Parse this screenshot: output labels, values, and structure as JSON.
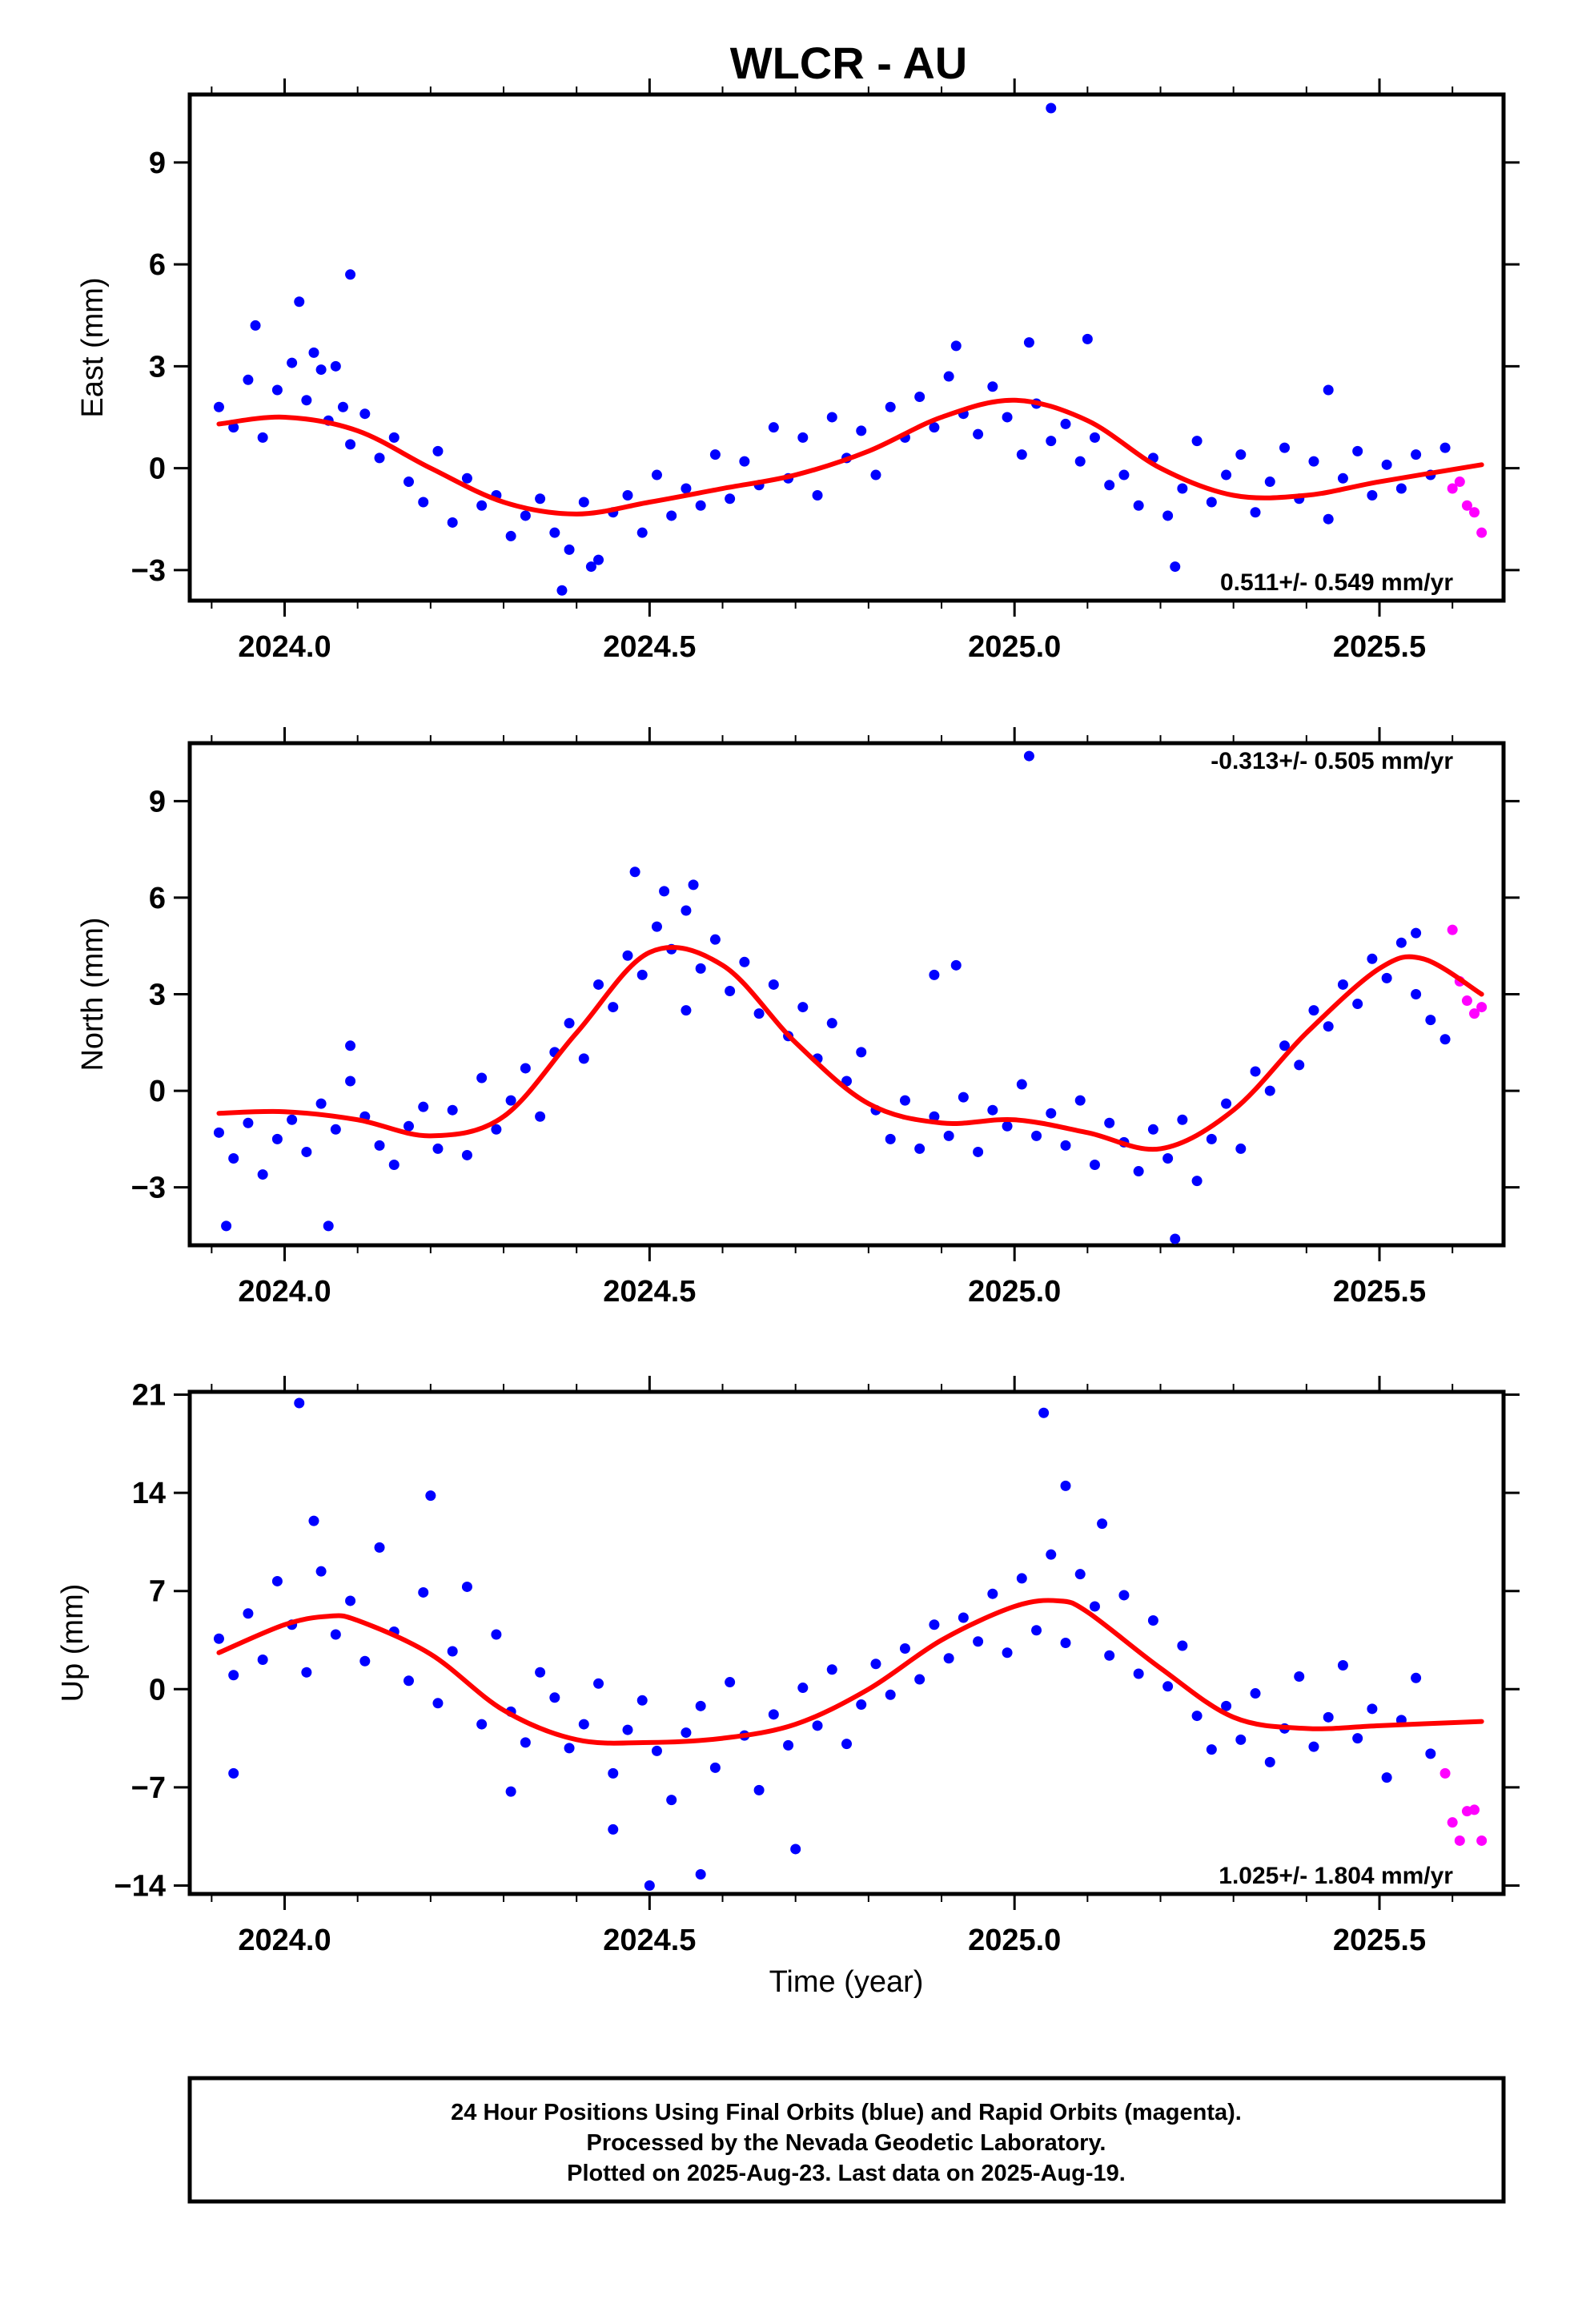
{
  "chart_data": {
    "type": "scatter",
    "title": "WLCR - AU",
    "xlabel": "Time (year)",
    "xlim": [
      2023.87,
      2025.67
    ],
    "xticks": [
      2024.0,
      2024.5,
      2025.0,
      2025.5
    ],
    "xtick_labels": [
      "2024.0",
      "2024.5",
      "2025.0",
      "2025.5"
    ],
    "colors": {
      "final": "#0000ff",
      "rapid": "#ff00ff",
      "model": "#ff0000"
    },
    "panels": [
      {
        "ylabel": "East (mm)",
        "ylim": [
          -3.9,
          11.0
        ],
        "yticks": [
          -3,
          0,
          3,
          6,
          9
        ],
        "ytick_labels": [
          "−3",
          "0",
          "3",
          "6",
          "9"
        ],
        "rate_text": "0.511+/- 0.549 mm/yr",
        "rate_position": "bottom-right",
        "model": {
          "t": [
            2023.91,
            2024.0,
            2024.1,
            2024.2,
            2024.3,
            2024.4,
            2024.5,
            2024.6,
            2024.7,
            2024.8,
            2024.9,
            2025.0,
            2025.1,
            2025.2,
            2025.3,
            2025.4,
            2025.5,
            2025.64
          ],
          "y": [
            1.3,
            1.5,
            1.1,
            0.0,
            -1.0,
            -1.35,
            -1.0,
            -0.6,
            -0.2,
            0.5,
            1.5,
            2.0,
            1.4,
            0.0,
            -0.8,
            -0.8,
            -0.4,
            0.1
          ]
        },
        "final": {
          "x": [
            2023.91,
            2023.93,
            2023.95,
            2023.97,
            2023.99,
            2024.01,
            2024.03,
            2024.05,
            2024.06,
            2024.08,
            2024.09,
            2024.11,
            2024.13,
            2024.15,
            2024.17,
            2024.19,
            2024.21,
            2024.23,
            2024.25,
            2024.27,
            2024.29,
            2024.31,
            2024.33,
            2024.35,
            2024.37,
            2024.39,
            2024.41,
            2024.43,
            2024.45,
            2024.47,
            2024.49,
            2024.51,
            2024.53,
            2024.55,
            2024.57,
            2024.59,
            2024.61,
            2024.63,
            2024.65,
            2024.67,
            2024.69,
            2024.71,
            2024.73,
            2024.75,
            2024.77,
            2024.79,
            2024.81,
            2024.83,
            2024.85,
            2024.87,
            2024.89,
            2024.91,
            2024.93,
            2024.95,
            2024.97,
            2024.99,
            2025.01,
            2025.03,
            2025.05,
            2025.07,
            2025.09,
            2025.11,
            2025.13,
            2025.15,
            2025.17,
            2025.19,
            2025.21,
            2025.23,
            2025.25,
            2025.27,
            2025.29,
            2025.31,
            2025.33,
            2025.35,
            2025.37,
            2025.39,
            2025.41,
            2025.43,
            2025.45,
            2025.47,
            2025.49,
            2025.51,
            2025.53,
            2025.55,
            2025.57,
            2025.59,
            2023.96,
            2024.02,
            2024.04,
            2024.07,
            2024.09,
            2024.38,
            2024.42,
            2024.92,
            2025.02,
            2025.05,
            2025.1,
            2025.22,
            2025.43
          ],
          "y": [
            1.8,
            1.2,
            2.6,
            0.9,
            2.3,
            3.1,
            2.0,
            2.9,
            1.4,
            1.8,
            0.7,
            1.6,
            0.3,
            0.9,
            -0.4,
            -1.0,
            0.5,
            -1.6,
            -0.3,
            -1.1,
            -0.8,
            -2.0,
            -1.4,
            -0.9,
            -1.9,
            -2.4,
            -1.0,
            -2.7,
            -1.3,
            -0.8,
            -1.9,
            -0.2,
            -1.4,
            -0.6,
            -1.1,
            0.4,
            -0.9,
            0.2,
            -0.5,
            1.2,
            -0.3,
            0.9,
            -0.8,
            1.5,
            0.3,
            1.1,
            -0.2,
            1.8,
            0.9,
            2.1,
            1.2,
            2.7,
            1.6,
            1.0,
            2.4,
            1.5,
            0.4,
            1.9,
            0.8,
            1.3,
            0.2,
            0.9,
            -0.5,
            -0.2,
            -1.1,
            0.3,
            -1.4,
            -0.6,
            0.8,
            -1.0,
            -0.2,
            0.4,
            -1.3,
            -0.4,
            0.6,
            -0.9,
            0.2,
            -1.5,
            -0.3,
            0.5,
            -0.8,
            0.1,
            -0.6,
            0.4,
            -0.2,
            0.6,
            4.2,
            4.9,
            3.4,
            3.0,
            5.7,
            -3.6,
            -2.9,
            3.6,
            3.7,
            10.6,
            3.8,
            -2.9,
            2.3
          ]
        },
        "rapid": {
          "x": [
            2025.6,
            2025.61,
            2025.62,
            2025.63,
            2025.64
          ],
          "y": [
            -0.6,
            -0.4,
            -1.1,
            -1.3,
            -1.9
          ]
        }
      },
      {
        "ylabel": "North (mm)",
        "ylim": [
          -4.8,
          10.8
        ],
        "yticks": [
          -3,
          0,
          3,
          6,
          9
        ],
        "ytick_labels": [
          "−3",
          "0",
          "3",
          "6",
          "9"
        ],
        "rate_text": "-0.313+/- 0.505 mm/yr",
        "rate_position": "top-right",
        "model": {
          "t": [
            2023.91,
            2024.0,
            2024.1,
            2024.2,
            2024.3,
            2024.4,
            2024.5,
            2024.6,
            2024.7,
            2024.8,
            2024.9,
            2025.0,
            2025.1,
            2025.2,
            2025.3,
            2025.4,
            2025.5,
            2025.56,
            2025.64
          ],
          "y": [
            -0.7,
            -0.65,
            -0.9,
            -1.4,
            -0.8,
            1.8,
            4.3,
            3.9,
            1.5,
            -0.4,
            -1.0,
            -0.9,
            -1.3,
            -1.8,
            -0.6,
            1.8,
            3.8,
            4.1,
            3.0
          ]
        },
        "final": {
          "x": [
            2023.91,
            2023.93,
            2023.95,
            2023.97,
            2023.99,
            2024.01,
            2024.03,
            2024.05,
            2024.07,
            2024.09,
            2024.11,
            2024.13,
            2024.15,
            2024.17,
            2024.19,
            2024.21,
            2024.23,
            2024.25,
            2024.27,
            2024.29,
            2024.31,
            2024.33,
            2024.35,
            2024.37,
            2024.39,
            2024.41,
            2024.43,
            2024.45,
            2024.47,
            2024.49,
            2024.51,
            2024.53,
            2024.55,
            2024.57,
            2024.59,
            2024.61,
            2024.63,
            2024.65,
            2024.67,
            2024.69,
            2024.71,
            2024.73,
            2024.75,
            2024.77,
            2024.79,
            2024.81,
            2024.83,
            2024.85,
            2024.87,
            2024.89,
            2024.91,
            2024.93,
            2024.95,
            2024.97,
            2024.99,
            2025.01,
            2025.03,
            2025.05,
            2025.07,
            2025.09,
            2025.11,
            2025.13,
            2025.15,
            2025.17,
            2025.19,
            2025.21,
            2025.23,
            2025.25,
            2025.27,
            2025.29,
            2025.31,
            2025.33,
            2025.35,
            2025.37,
            2025.39,
            2025.41,
            2025.43,
            2025.45,
            2025.47,
            2025.49,
            2025.51,
            2025.53,
            2025.55,
            2025.57,
            2025.59,
            2023.92,
            2024.06,
            2024.09,
            2024.48,
            2024.52,
            2024.56,
            2024.55,
            2024.89,
            2024.92,
            2025.02,
            2025.22,
            2025.55
          ],
          "y": [
            -1.3,
            -2.1,
            -1.0,
            -2.6,
            -1.5,
            -0.9,
            -1.9,
            -0.4,
            -1.2,
            0.3,
            -0.8,
            -1.7,
            -2.3,
            -1.1,
            -0.5,
            -1.8,
            -0.6,
            -2.0,
            0.4,
            -1.2,
            -0.3,
            0.7,
            -0.8,
            1.2,
            2.1,
            1.0,
            3.3,
            2.6,
            4.2,
            3.6,
            5.1,
            4.4,
            5.6,
            3.8,
            4.7,
            3.1,
            4.0,
            2.4,
            3.3,
            1.7,
            2.6,
            1.0,
            2.1,
            0.3,
            1.2,
            -0.6,
            -1.5,
            -0.3,
            -1.8,
            -0.8,
            -1.4,
            -0.2,
            -1.9,
            -0.6,
            -1.1,
            0.2,
            -1.4,
            -0.7,
            -1.7,
            -0.3,
            -2.3,
            -1.0,
            -1.6,
            -2.5,
            -1.2,
            -2.1,
            -0.9,
            -2.8,
            -1.5,
            -0.4,
            -1.8,
            0.6,
            0.0,
            1.4,
            0.8,
            2.5,
            2.0,
            3.3,
            2.7,
            4.1,
            3.5,
            4.6,
            3.0,
            2.2,
            1.6,
            -4.2,
            -4.2,
            1.4,
            6.8,
            6.2,
            6.4,
            2.5,
            3.6,
            3.9,
            10.4,
            -4.6,
            4.9
          ],
          "_note": ""
        },
        "rapid": {
          "x": [
            2025.6,
            2025.61,
            2025.62,
            2025.63,
            2025.64
          ],
          "y": [
            5.0,
            3.4,
            2.8,
            2.4,
            2.6
          ]
        }
      },
      {
        "ylabel": "Up (mm)",
        "ylim": [
          -14.6,
          21.2
        ],
        "yticks": [
          -14,
          -7,
          0,
          7,
          14,
          21
        ],
        "ytick_labels": [
          "−14",
          "−7",
          "0",
          "7",
          "14",
          "21"
        ],
        "rate_text": "1.025+/- 1.804 mm/yr",
        "rate_position": "bottom-right",
        "model": {
          "t": [
            2023.91,
            2024.0,
            2024.06,
            2024.1,
            2024.2,
            2024.3,
            2024.4,
            2024.5,
            2024.6,
            2024.7,
            2024.8,
            2024.9,
            2025.0,
            2025.06,
            2025.1,
            2025.2,
            2025.3,
            2025.4,
            2025.5,
            2025.64
          ],
          "y": [
            2.6,
            4.6,
            5.2,
            4.9,
            2.5,
            -1.5,
            -3.6,
            -3.8,
            -3.5,
            -2.5,
            0.0,
            3.5,
            5.9,
            6.3,
            5.5,
            1.5,
            -2.0,
            -2.8,
            -2.6,
            -2.3
          ]
        },
        "final": {
          "x": [
            2023.91,
            2023.93,
            2023.95,
            2023.97,
            2023.99,
            2024.01,
            2024.03,
            2024.05,
            2024.07,
            2024.09,
            2024.11,
            2024.13,
            2024.15,
            2024.17,
            2024.19,
            2024.21,
            2024.23,
            2024.25,
            2024.27,
            2024.29,
            2024.31,
            2024.33,
            2024.35,
            2024.37,
            2024.39,
            2024.41,
            2024.43,
            2024.45,
            2024.47,
            2024.49,
            2024.51,
            2024.53,
            2024.55,
            2024.57,
            2024.59,
            2024.61,
            2024.63,
            2024.65,
            2024.67,
            2024.69,
            2024.71,
            2024.73,
            2024.75,
            2024.77,
            2024.79,
            2024.81,
            2024.83,
            2024.85,
            2024.87,
            2024.89,
            2024.91,
            2024.93,
            2024.95,
            2024.97,
            2024.99,
            2025.01,
            2025.03,
            2025.05,
            2025.07,
            2025.09,
            2025.11,
            2025.13,
            2025.15,
            2025.17,
            2025.19,
            2025.21,
            2025.23,
            2025.25,
            2025.27,
            2025.29,
            2025.31,
            2025.33,
            2025.35,
            2025.37,
            2025.39,
            2025.41,
            2025.43,
            2025.45,
            2025.47,
            2025.49,
            2025.51,
            2025.53,
            2025.55,
            2025.57,
            2023.93,
            2024.02,
            2024.04,
            2024.2,
            2024.5,
            2024.57,
            2024.7,
            2025.04,
            2025.07,
            2025.12,
            2024.31,
            2024.45
          ],
          "y": [
            3.6,
            1.0,
            5.4,
            2.1,
            7.7,
            4.6,
            1.2,
            8.4,
            3.9,
            6.3,
            2.0,
            10.1,
            4.1,
            0.6,
            6.9,
            -1.0,
            2.7,
            7.3,
            -2.5,
            3.9,
            -1.6,
            -3.8,
            1.2,
            -0.6,
            -4.2,
            -2.5,
            0.4,
            -6.0,
            -2.9,
            -0.8,
            -4.4,
            -7.9,
            -3.1,
            -1.2,
            -5.6,
            0.5,
            -3.3,
            -7.2,
            -1.8,
            -4.0,
            0.1,
            -2.6,
            1.4,
            -3.9,
            -1.1,
            1.8,
            -0.4,
            2.9,
            0.7,
            4.6,
            2.2,
            5.1,
            3.4,
            6.8,
            2.6,
            7.9,
            4.2,
            9.6,
            3.3,
            8.2,
            5.9,
            2.4,
            6.7,
            1.1,
            4.9,
            0.2,
            3.1,
            -1.9,
            -4.3,
            -1.2,
            -3.6,
            -0.3,
            -5.2,
            -2.8,
            0.9,
            -4.1,
            -2.0,
            1.7,
            -3.5,
            -1.4,
            -6.3,
            -2.2,
            0.8,
            -4.6,
            -6.0,
            20.4,
            12.0,
            13.8,
            -14.0,
            -13.2,
            -11.4,
            19.7,
            14.5,
            11.8,
            -7.3,
            -10.0
          ]
        },
        "rapid": {
          "x": [
            2025.59,
            2025.6,
            2025.61,
            2025.62,
            2025.63,
            2025.64
          ],
          "y": [
            -6.0,
            -9.5,
            -10.8,
            -8.7,
            -8.6,
            -10.8
          ]
        }
      }
    ]
  },
  "footer": {
    "line1": "24 Hour Positions Using Final Orbits (blue) and Rapid Orbits (magenta).",
    "line2": "Processed by the Nevada Geodetic Laboratory.",
    "line3": "Plotted on 2025-Aug-23. Last data on 2025-Aug-19."
  }
}
